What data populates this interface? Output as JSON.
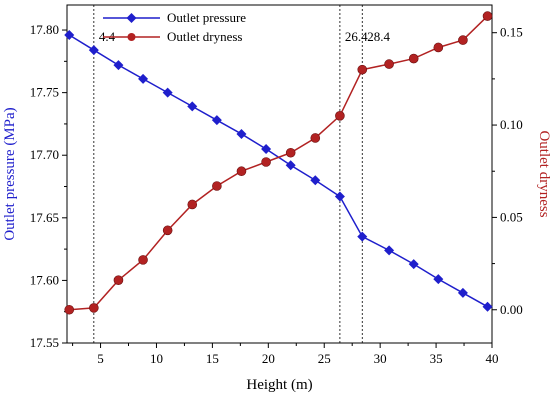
{
  "chart_data": {
    "type": "line",
    "xlabel": "Height (m)",
    "ylabel_left": "Outlet pressure (MPa)",
    "ylabel_right": "Outlet dryness",
    "xlim": [
      2,
      40
    ],
    "ylim_left": [
      17.55,
      17.82
    ],
    "ylim_right": [
      -0.018,
      0.165
    ],
    "x_ticks": [
      "5",
      "10",
      "15",
      "20",
      "25",
      "30",
      "35",
      "40"
    ],
    "y_left_ticks": [
      "17.55",
      "17.60",
      "17.65",
      "17.70",
      "17.75",
      "17.80"
    ],
    "y_right_ticks": [
      "0.00",
      "0.05",
      "0.10",
      "0.15"
    ],
    "legend_position": "top-left",
    "grid": false,
    "series": [
      {
        "name": "Outlet pressure",
        "axis": "left",
        "color": "#1f1fcc",
        "marker": "diamond",
        "x": [
          2.2,
          4.4,
          6.6,
          8.8,
          11.0,
          13.2,
          15.4,
          17.6,
          19.8,
          22.0,
          24.2,
          26.4,
          28.4,
          30.8,
          33.0,
          35.2,
          37.4,
          39.6
        ],
        "y": [
          17.796,
          17.784,
          17.772,
          17.761,
          17.75,
          17.739,
          17.728,
          17.717,
          17.705,
          17.692,
          17.68,
          17.667,
          17.635,
          17.624,
          17.613,
          17.601,
          17.59,
          17.579
        ]
      },
      {
        "name": "Outlet dryness",
        "axis": "right",
        "color": "#b22222",
        "marker": "circle",
        "x": [
          2.2,
          4.4,
          6.6,
          8.8,
          11.0,
          13.2,
          15.4,
          17.6,
          19.8,
          22.0,
          24.2,
          26.4,
          28.4,
          30.8,
          33.0,
          35.2,
          37.4,
          39.6
        ],
        "y": [
          0.0,
          0.001,
          0.016,
          0.027,
          0.043,
          0.057,
          0.067,
          0.075,
          0.08,
          0.085,
          0.093,
          0.105,
          0.13,
          0.133,
          0.136,
          0.142,
          0.146,
          0.159
        ]
      }
    ],
    "annotations": [
      {
        "x": 4.4,
        "label": "4.4"
      },
      {
        "x": 26.4,
        "label": "26.4"
      },
      {
        "x": 28.4,
        "label": "28.4"
      }
    ]
  }
}
